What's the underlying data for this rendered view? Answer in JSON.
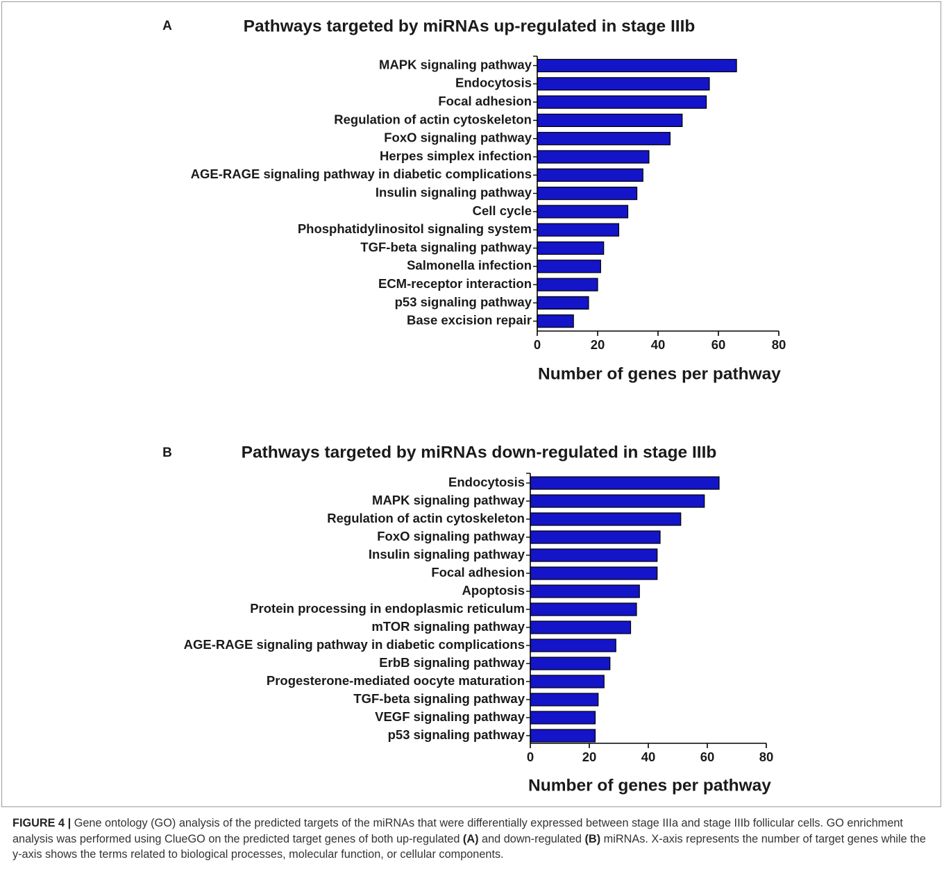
{
  "colors": {
    "bar": "#1414c8",
    "bar_stroke": "#000000",
    "text": "#1a1a1a"
  },
  "chart_data": [
    {
      "type": "bar",
      "orientation": "horizontal",
      "panel": "A",
      "title": "Pathways targeted by miRNAs up-regulated in stage IIIb",
      "xlabel": "Number of genes per pathway",
      "ylabel": "",
      "xlim": [
        0,
        80
      ],
      "xticks": [
        0,
        20,
        40,
        60,
        80
      ],
      "grid": false,
      "categories": [
        "MAPK signaling pathway",
        "Endocytosis",
        "Focal adhesion",
        "Regulation of actin cytoskeleton",
        "FoxO signaling pathway",
        "Herpes simplex infection",
        "AGE-RAGE signaling pathway in diabetic complications",
        "Insulin signaling pathway",
        "Cell cycle",
        "Phosphatidylinositol signaling system",
        "TGF-beta signaling pathway",
        "Salmonella infection",
        "ECM-receptor interaction",
        "p53 signaling pathway",
        "Base excision repair"
      ],
      "values": [
        66,
        57,
        56,
        48,
        44,
        37,
        35,
        33,
        30,
        27,
        22,
        21,
        20,
        17,
        12
      ]
    },
    {
      "type": "bar",
      "orientation": "horizontal",
      "panel": "B",
      "title": "Pathways targeted by miRNAs down-regulated in stage IIIb",
      "xlabel": "Number of genes per pathway",
      "ylabel": "",
      "xlim": [
        0,
        80
      ],
      "xticks": [
        0,
        20,
        40,
        60,
        80
      ],
      "grid": false,
      "categories": [
        "Endocytosis",
        "MAPK signaling pathway",
        "Regulation of actin cytoskeleton",
        "FoxO signaling pathway",
        "Insulin signaling pathway",
        "Focal adhesion",
        "Apoptosis",
        "Protein processing in endoplasmic reticulum",
        "mTOR signaling pathway",
        "AGE-RAGE signaling pathway in diabetic complications",
        "ErbB signaling pathway",
        "Progesterone-mediated oocyte maturation",
        "TGF-beta signaling pathway",
        "VEGF signaling pathway",
        "p53 signaling pathway"
      ],
      "values": [
        64,
        59,
        51,
        44,
        43,
        43,
        37,
        36,
        34,
        29,
        27,
        25,
        23,
        22,
        22
      ]
    }
  ],
  "caption": {
    "label": "FIGURE 4 |",
    "text_1": " Gene ontology (GO) analysis of the predicted targets of the miRNAs that were differentially expressed between stage IIIa and stage IIIb follicular cells. GO enrichment analysis was performed using ClueGO on the predicted target genes of both up-regulated ",
    "ref_a": "(A)",
    "text_2": " and down-regulated ",
    "ref_b": "(B)",
    "text_3": " miRNAs. X-axis represents the number of target genes while the y-axis shows the terms related to biological processes, molecular function, or cellular components."
  }
}
